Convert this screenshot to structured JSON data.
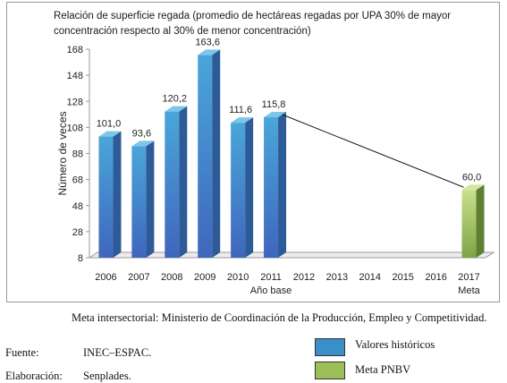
{
  "chart_data": {
    "type": "bar",
    "title_line1": "Relación de superficie regada (promedio de hectáreas regadas por UPA 30% de mayor",
    "title_line2": "concentración respecto al 30% de menor concentración)",
    "ylabel": "Número de veces",
    "ylim": [
      8,
      168
    ],
    "yticks": [
      8,
      28,
      48,
      68,
      88,
      108,
      128,
      148,
      168
    ],
    "categories": [
      "2006",
      "2007",
      "2008",
      "2009",
      "2010",
      "2011",
      "2012",
      "2013",
      "2014",
      "2015",
      "2016",
      "2017"
    ],
    "category_sublabels": {
      "2011": "Año base",
      "2017": "Meta"
    },
    "series": [
      {
        "name": "Valores históricos",
        "color": "#3a8fc9",
        "values": [
          101.0,
          93.6,
          120.2,
          163.6,
          111.6,
          115.8,
          null,
          null,
          null,
          null,
          null,
          null
        ],
        "labels": [
          "101,0",
          "93,6",
          "120,2",
          "163,6",
          "111,6",
          "115,8",
          "",
          "",
          "",
          "",
          "",
          ""
        ]
      },
      {
        "name": "Meta PNBV",
        "color": "#9cbf5a",
        "values": [
          null,
          null,
          null,
          null,
          null,
          null,
          null,
          null,
          null,
          null,
          null,
          60.0
        ],
        "labels": [
          "",
          "",
          "",
          "",
          "",
          "",
          "",
          "",
          "",
          "",
          "",
          "60,0"
        ]
      }
    ],
    "trend_line": {
      "from": "2011",
      "to": "2017"
    }
  },
  "note": "Meta intersectorial: Ministerio de Coordinación de la Producción, Empleo y Competitividad.",
  "source_label": "Fuente:",
  "source_value": "INEC–ESPAC.",
  "elab_label": "Elaboración:",
  "elab_value": "Senplades.",
  "legend": [
    {
      "label": "Valores históricos",
      "color": "#3a8fc9"
    },
    {
      "label": "Meta PNBV",
      "color": "#9cbf5a"
    }
  ]
}
